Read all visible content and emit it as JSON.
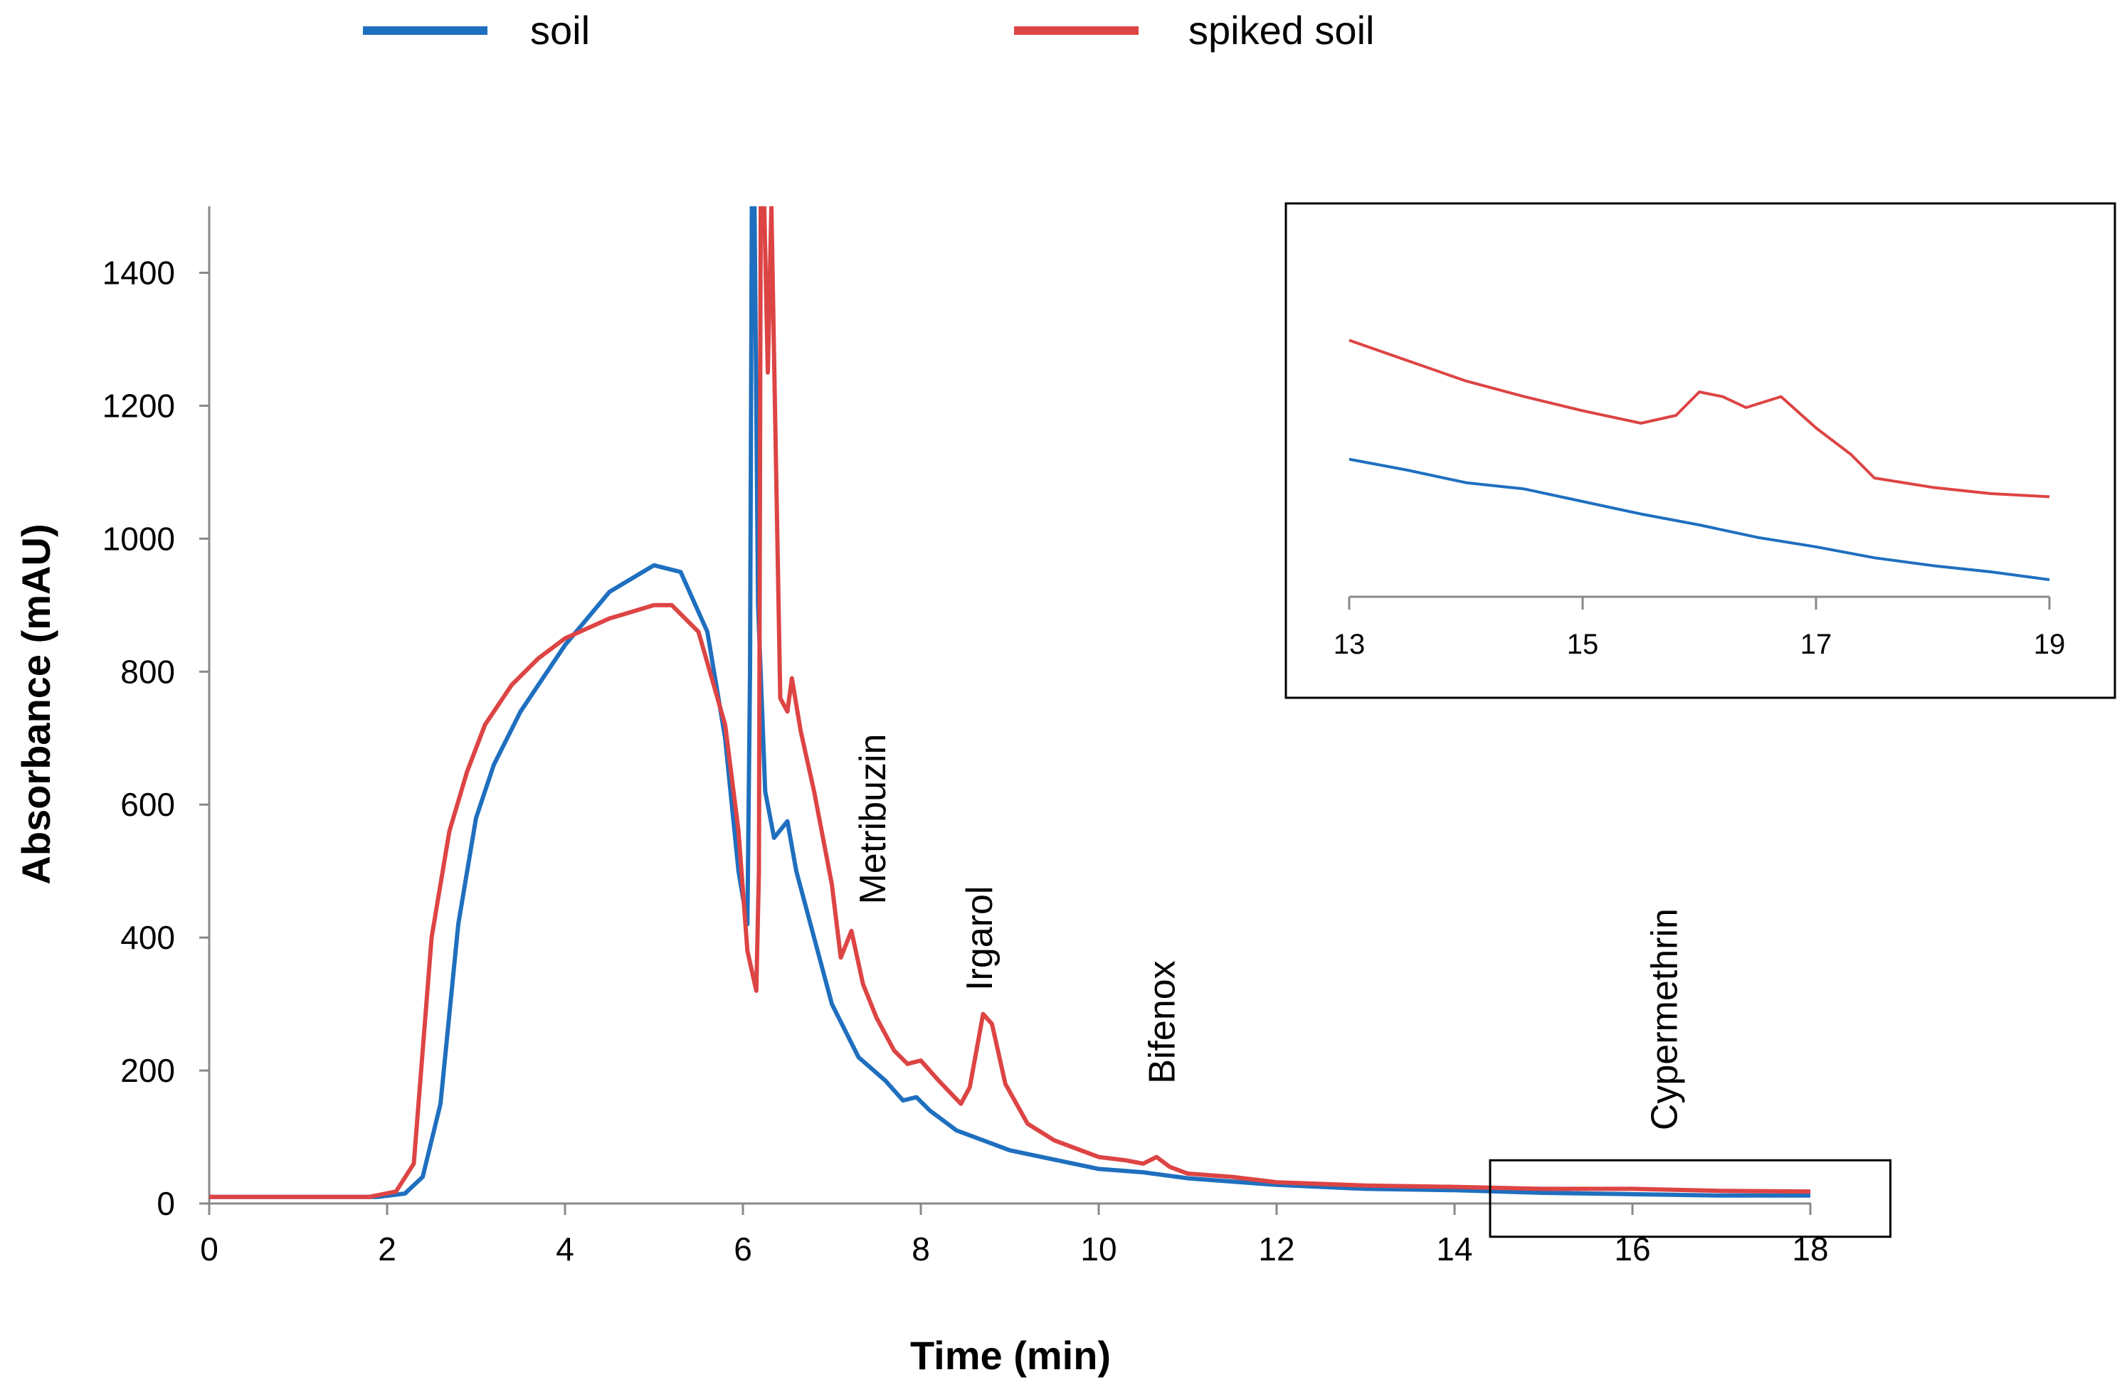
{
  "chart_data": {
    "type": "line",
    "title": "",
    "xlabel": "Time (min)",
    "ylabel": "Absorbance (mAU)",
    "xlim": [
      0,
      18
    ],
    "ylim": [
      0,
      1500
    ],
    "x_ticks": [
      0,
      2,
      4,
      6,
      8,
      10,
      12,
      14,
      16,
      18
    ],
    "y_ticks": [
      0,
      200,
      400,
      600,
      800,
      1000,
      1200,
      1400
    ],
    "grid": false,
    "legend_position": "top",
    "colors": {
      "soil": "#1f6fbf",
      "spiked_soil": "#dd4444",
      "axis": "#888888"
    },
    "series": [
      {
        "name": "soil",
        "color": "#1f6fbf",
        "points": [
          [
            0,
            10
          ],
          [
            1,
            10
          ],
          [
            1.9,
            10
          ],
          [
            2.2,
            15
          ],
          [
            2.4,
            40
          ],
          [
            2.6,
            150
          ],
          [
            2.8,
            420
          ],
          [
            3.0,
            580
          ],
          [
            3.2,
            660
          ],
          [
            3.5,
            740
          ],
          [
            4.0,
            840
          ],
          [
            4.5,
            920
          ],
          [
            5.0,
            960
          ],
          [
            5.3,
            950
          ],
          [
            5.6,
            860
          ],
          [
            5.8,
            700
          ],
          [
            5.95,
            500
          ],
          [
            6.05,
            420
          ],
          [
            6.08,
            800
          ],
          [
            6.1,
            1500
          ],
          [
            6.13,
            1500
          ],
          [
            6.17,
            900
          ],
          [
            6.25,
            620
          ],
          [
            6.35,
            550
          ],
          [
            6.5,
            575
          ],
          [
            6.6,
            500
          ],
          [
            6.8,
            400
          ],
          [
            7.0,
            300
          ],
          [
            7.3,
            220
          ],
          [
            7.6,
            185
          ],
          [
            7.8,
            155
          ],
          [
            7.95,
            160
          ],
          [
            8.1,
            140
          ],
          [
            8.4,
            110
          ],
          [
            9.0,
            80
          ],
          [
            10,
            52
          ],
          [
            10.5,
            47
          ],
          [
            11,
            38
          ],
          [
            12,
            28
          ],
          [
            13,
            22
          ],
          [
            14,
            20
          ],
          [
            15,
            16
          ],
          [
            16,
            14
          ],
          [
            17,
            12
          ],
          [
            18,
            12
          ]
        ]
      },
      {
        "name": "spiked soil",
        "color": "#dd4444",
        "points": [
          [
            0,
            10
          ],
          [
            1,
            10
          ],
          [
            1.8,
            10
          ],
          [
            2.1,
            18
          ],
          [
            2.3,
            60
          ],
          [
            2.5,
            400
          ],
          [
            2.7,
            560
          ],
          [
            2.9,
            650
          ],
          [
            3.1,
            720
          ],
          [
            3.4,
            780
          ],
          [
            3.7,
            820
          ],
          [
            4.0,
            850
          ],
          [
            4.5,
            880
          ],
          [
            5.0,
            900
          ],
          [
            5.2,
            900
          ],
          [
            5.5,
            860
          ],
          [
            5.8,
            720
          ],
          [
            5.95,
            560
          ],
          [
            6.05,
            380
          ],
          [
            6.15,
            320
          ],
          [
            6.18,
            500
          ],
          [
            6.2,
            1500
          ],
          [
            6.24,
            1500
          ],
          [
            6.28,
            1250
          ],
          [
            6.32,
            1500
          ],
          [
            6.36,
            1200
          ],
          [
            6.42,
            760
          ],
          [
            6.5,
            740
          ],
          [
            6.55,
            790
          ],
          [
            6.65,
            710
          ],
          [
            6.8,
            620
          ],
          [
            7.0,
            480
          ],
          [
            7.1,
            370
          ],
          [
            7.22,
            410
          ],
          [
            7.35,
            330
          ],
          [
            7.5,
            280
          ],
          [
            7.7,
            230
          ],
          [
            7.85,
            210
          ],
          [
            8.0,
            215
          ],
          [
            8.2,
            185
          ],
          [
            8.45,
            150
          ],
          [
            8.55,
            175
          ],
          [
            8.7,
            285
          ],
          [
            8.8,
            270
          ],
          [
            8.95,
            180
          ],
          [
            9.2,
            120
          ],
          [
            9.5,
            95
          ],
          [
            10,
            70
          ],
          [
            10.3,
            65
          ],
          [
            10.5,
            60
          ],
          [
            10.65,
            70
          ],
          [
            10.8,
            55
          ],
          [
            11,
            45
          ],
          [
            11.5,
            40
          ],
          [
            12,
            32
          ],
          [
            13,
            27
          ],
          [
            14,
            25
          ],
          [
            15,
            22
          ],
          [
            16,
            22
          ],
          [
            17,
            19
          ],
          [
            18,
            18
          ]
        ]
      }
    ],
    "annotations": [
      {
        "text": "Metribuzin",
        "x": 7.6,
        "y": 450
      },
      {
        "text": "Irgarol",
        "x": 8.8,
        "y": 320
      },
      {
        "text": "Bifenox",
        "x": 10.85,
        "y": 180
      },
      {
        "text": "Cypermethrin",
        "x": 16.5,
        "y": 110
      }
    ],
    "highlight_region": {
      "x_range": [
        14.4,
        18.9
      ],
      "y_range": [
        -50,
        65
      ]
    },
    "inset": {
      "xlim": [
        13,
        19
      ],
      "x_ticks": [
        13,
        15,
        17,
        19
      ],
      "series": [
        {
          "name": "soil",
          "points": [
            [
              13,
              52
            ],
            [
              13.5,
              45
            ],
            [
              14,
              37
            ],
            [
              14.5,
              33
            ],
            [
              15,
              25
            ],
            [
              15.5,
              17
            ],
            [
              16,
              10
            ],
            [
              16.5,
              2
            ],
            [
              17,
              -4
            ],
            [
              17.5,
              -11
            ],
            [
              18,
              -16
            ],
            [
              18.5,
              -20
            ],
            [
              19,
              -25
            ]
          ]
        },
        {
          "name": "spiked soil",
          "points": [
            [
              13,
              128
            ],
            [
              13.5,
              115
            ],
            [
              14,
              102
            ],
            [
              14.5,
              92
            ],
            [
              15,
              83
            ],
            [
              15.5,
              75
            ],
            [
              15.8,
              80
            ],
            [
              16.0,
              95
            ],
            [
              16.2,
              92
            ],
            [
              16.4,
              85
            ],
            [
              16.7,
              92
            ],
            [
              17,
              72
            ],
            [
              17.3,
              55
            ],
            [
              17.5,
              40
            ],
            [
              18,
              34
            ],
            [
              18.5,
              30
            ],
            [
              19,
              28
            ]
          ]
        }
      ]
    }
  }
}
